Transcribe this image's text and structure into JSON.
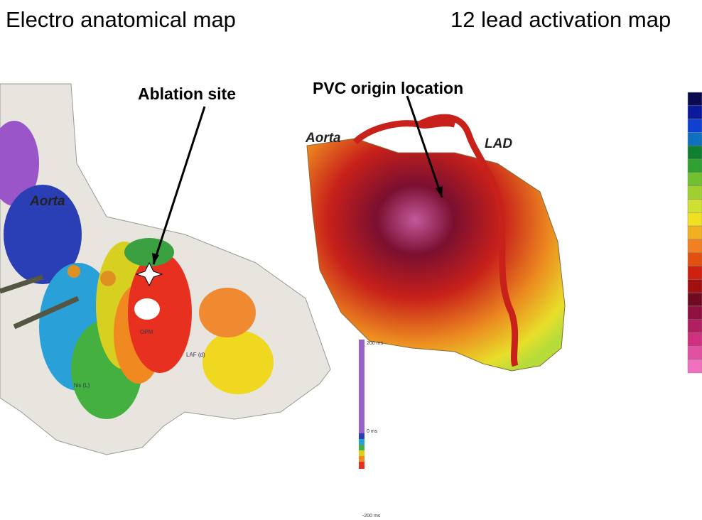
{
  "headings": {
    "left": "Electro anatomical map",
    "right": "12 lead activation map"
  },
  "left_map": {
    "callout": "Ablation site",
    "aorta_label": "Aorta",
    "small_labels": [
      "OPM",
      "LAF (d)",
      "his (L)"
    ]
  },
  "right_map": {
    "callout": "PVC origin location",
    "aorta_label": "Aorta",
    "lad_label": "LAD"
  },
  "scale_bar": {
    "labels": [
      "200 ms",
      "0 ms",
      "-200 ms"
    ]
  }
}
